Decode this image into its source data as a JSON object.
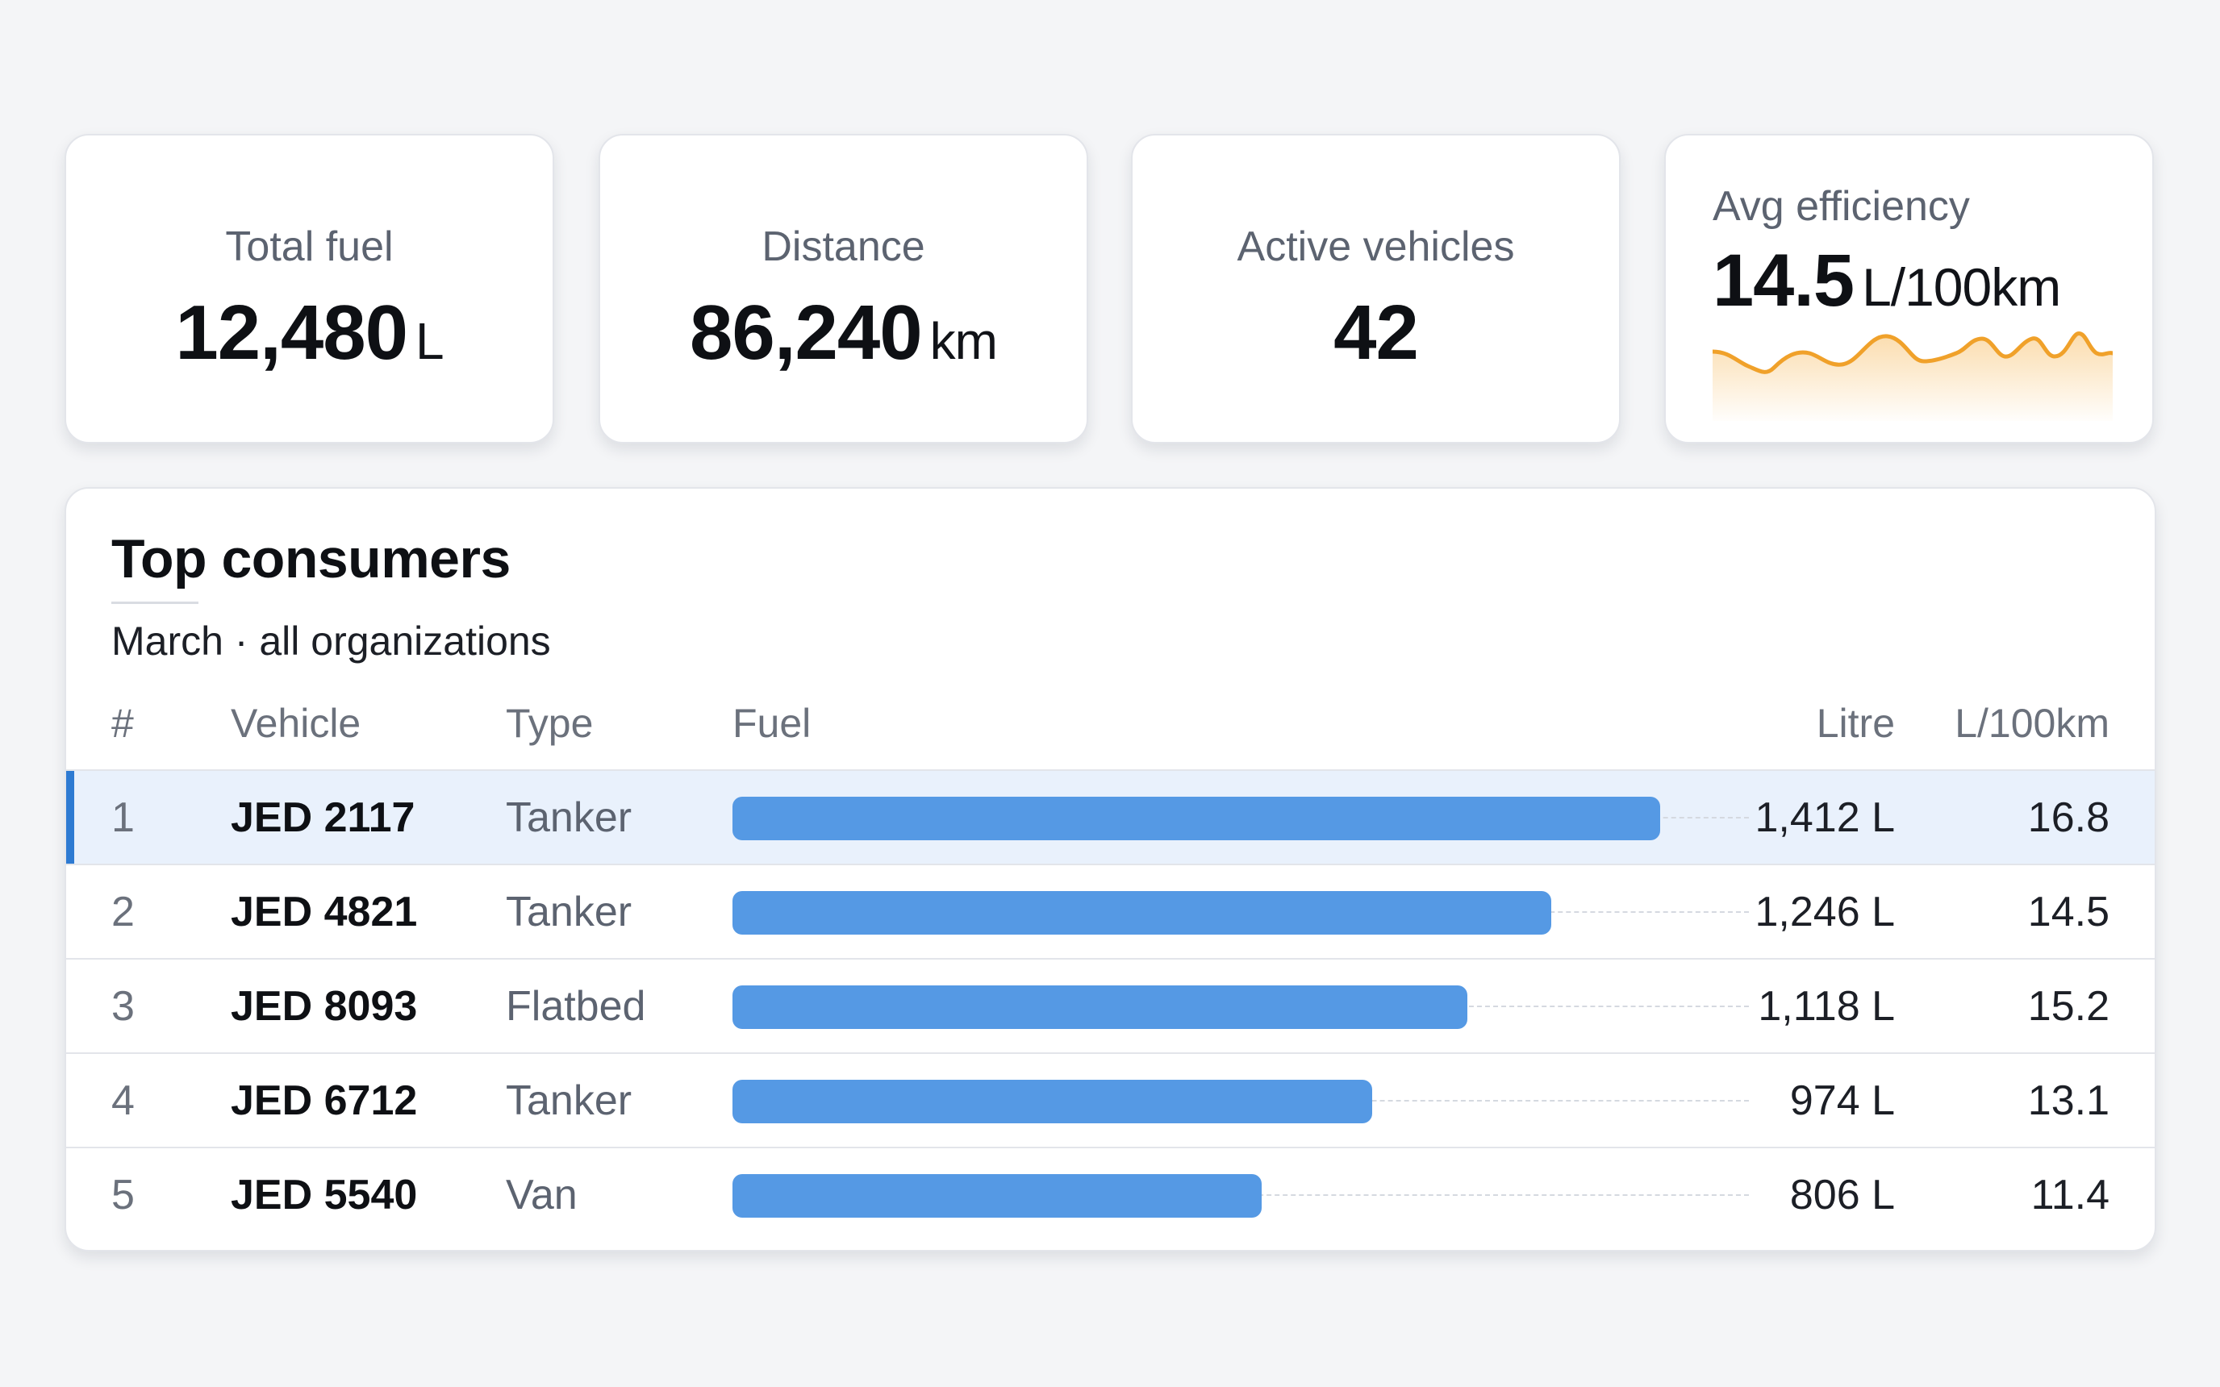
{
  "kpis": {
    "total_fuel": {
      "label": "Total fuel",
      "value": "12,480",
      "unit": "L"
    },
    "distance": {
      "label": "Distance",
      "value": "86,240",
      "unit": "km"
    },
    "active_vehicles": {
      "label": "Active vehicles",
      "value": "42"
    },
    "avg_efficiency": {
      "label": "Avg efficiency",
      "value": "14.5",
      "unit": "L/100km",
      "sparkline_color": "#f0a12a"
    }
  },
  "panel": {
    "title": "Top consumers",
    "subtitle": "March · all organizations",
    "columns": {
      "rank": "#",
      "vehicle": "Vehicle",
      "type": "Type",
      "fuel": "Fuel",
      "litre": "Litre",
      "eff": "L/100km"
    },
    "rows": [
      {
        "rank": "1",
        "vehicle": "JED 2117",
        "type": "Tanker",
        "litre": "1,412 L",
        "eff": "16.8",
        "fuel": 1412,
        "active": true
      },
      {
        "rank": "2",
        "vehicle": "JED 4821",
        "type": "Tanker",
        "litre": "1,246 L",
        "eff": "14.5",
        "fuel": 1246
      },
      {
        "rank": "3",
        "vehicle": "JED 8093",
        "type": "Flatbed",
        "litre": "1,118 L",
        "eff": "15.2",
        "fuel": 1118
      },
      {
        "rank": "4",
        "vehicle": "JED 6712",
        "type": "Tanker",
        "litre": "974 L",
        "eff": "13.1",
        "fuel": 974
      },
      {
        "rank": "5",
        "vehicle": "JED 5540",
        "type": "Van",
        "litre": "806 L",
        "eff": "11.4",
        "fuel": 806
      }
    ]
  },
  "colors": {
    "bar": "#5599e4",
    "active_row": "#e9f1fc",
    "active_marker": "#2d7ad2"
  }
}
